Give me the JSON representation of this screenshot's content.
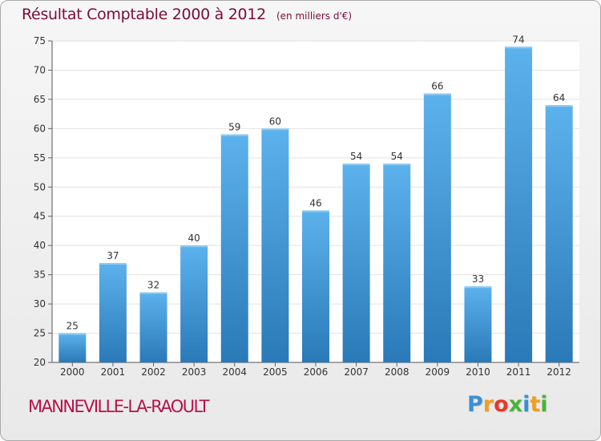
{
  "chart_data": {
    "type": "bar",
    "title": "Résultat Comptable 2000 à 2012",
    "subtitle": "(en milliers d'€)",
    "categories": [
      "2000",
      "2001",
      "2002",
      "2003",
      "2004",
      "2005",
      "2006",
      "2007",
      "2008",
      "2009",
      "2010",
      "2011",
      "2012"
    ],
    "values": [
      25,
      37,
      32,
      40,
      59,
      60,
      46,
      54,
      54,
      66,
      33,
      74,
      64
    ],
    "ylim": [
      20,
      75
    ],
    "yticks": [
      20,
      25,
      30,
      35,
      40,
      45,
      50,
      55,
      60,
      65,
      70,
      75
    ],
    "xlabel": "",
    "ylabel": "",
    "grid": true,
    "bar_color": "#4aa3e2"
  },
  "commune": "MANNEVILLE-LA-RAOULT",
  "brand": {
    "letters": [
      "P",
      "r",
      "o",
      "x",
      "i",
      "t",
      "i"
    ],
    "colors": [
      "#3a8fd6",
      "#f0a020",
      "#e63a2a",
      "#4bb33c",
      "#3a8fd6",
      "#f0a020",
      "#4bb33c"
    ]
  }
}
